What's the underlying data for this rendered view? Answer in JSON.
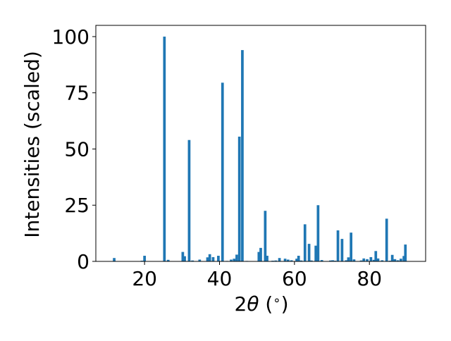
{
  "chart_data": {
    "type": "bar",
    "title": "",
    "xlabel_pre": "2",
    "xlabel_theta": "θ",
    "xlabel_post": " (",
    "xlabel_deg": "∘",
    "xlabel_close": ")",
    "ylabel": "Intensities (scaled)",
    "xlim": [
      7,
      95
    ],
    "ylim": [
      0,
      105
    ],
    "xticks": [
      20,
      40,
      60,
      80
    ],
    "yticks": [
      0,
      25,
      50,
      75,
      100
    ],
    "bar_color": "#1f77b4",
    "bar_width": 0.7,
    "grid": false,
    "x": [
      11.9,
      19.3,
      20.0,
      25.3,
      26.3,
      30.2,
      30.7,
      31.9,
      32.8,
      34.7,
      36.8,
      37.4,
      38.3,
      39.7,
      40.8,
      42.0,
      43.1,
      43.9,
      44.6,
      45.3,
      46.1,
      47.3,
      50.5,
      51.0,
      52.2,
      52.7,
      54.2,
      55.0,
      56.0,
      57.5,
      58.3,
      59.2,
      60.6,
      61.1,
      61.8,
      62.8,
      63.9,
      64.5,
      65.7,
      66.3,
      67.3,
      69.6,
      70.2,
      70.8,
      71.6,
      72.7,
      73.8,
      74.4,
      75.1,
      75.9,
      77.8,
      78.5,
      79.4,
      80.4,
      81.2,
      81.7,
      82.3,
      83.4,
      84.6,
      85.5,
      86.1,
      86.8,
      87.6,
      88.4,
      89.2,
      89.6
    ],
    "values": [
      1.5,
      0.3,
      2.5,
      100,
      0.7,
      4.2,
      2.3,
      54,
      0.4,
      0.8,
      1.8,
      3.2,
      1.9,
      2.5,
      79.5,
      0.2,
      0.8,
      1.2,
      3.0,
      55.5,
      94,
      0.2,
      4.2,
      6.0,
      22.5,
      2.5,
      0.3,
      0.4,
      1.5,
      1.2,
      0.8,
      0.5,
      1.2,
      2.5,
      0.4,
      16.5,
      7.8,
      0.4,
      7.0,
      25,
      0.6,
      0.4,
      0.5,
      0.3,
      13.8,
      10,
      0.5,
      1.8,
      12.8,
      0.9,
      0.4,
      1.3,
      1.0,
      1.9,
      0.7,
      4.6,
      1.3,
      0.5,
      19,
      0.3,
      2.9,
      1.0,
      0.5,
      1.2,
      2.4,
      7.5
    ]
  }
}
